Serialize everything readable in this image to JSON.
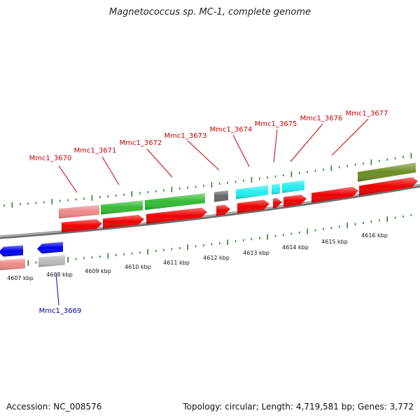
{
  "title": "Magnetococcus sp. MC-1, complete genome",
  "footer": {
    "accession_label": "Accession:",
    "accession": "NC_008576",
    "topology_label": "Topology:",
    "topology": "circular",
    "length_label": "Length:",
    "length": "4,719,581 bp",
    "genes_label": "Genes:",
    "genes": "3,772"
  },
  "scale": {
    "tick_labels": [
      "4607 kbp",
      "4608 kbp",
      "4609 kbp",
      "4610 kbp",
      "4611 kbp",
      "4612 kbp",
      "4613 kbp",
      "4614 kbp",
      "4615 kbp",
      "4616 kbp"
    ]
  },
  "gene_labels": [
    {
      "name": "Mmc1_3670",
      "color": "#cc0000"
    },
    {
      "name": "Mmc1_3671",
      "color": "#cc0000"
    },
    {
      "name": "Mmc1_3672",
      "color": "#cc0000"
    },
    {
      "name": "Mmc1_3673",
      "color": "#cc0000"
    },
    {
      "name": "Mmc1_3674",
      "color": "#cc0000"
    },
    {
      "name": "Mmc1_3675",
      "color": "#cc0000"
    },
    {
      "name": "Mmc1_3676",
      "color": "#cc0000"
    },
    {
      "name": "Mmc1_3677",
      "color": "#cc0000"
    },
    {
      "name": "Mmc1_3669",
      "color": "#0000aa"
    }
  ],
  "colors": {
    "cds": "#ee0000",
    "category_pink": "#ee8888",
    "category_green": "#33bb33",
    "category_gray": "#666666",
    "category_cyan": "#22eeee",
    "category_olive": "#6b8e23",
    "category_blue": "#0000ee",
    "category_lightgray": "#bbbbbb",
    "backbone": "#888888",
    "ticks": "#228822"
  }
}
